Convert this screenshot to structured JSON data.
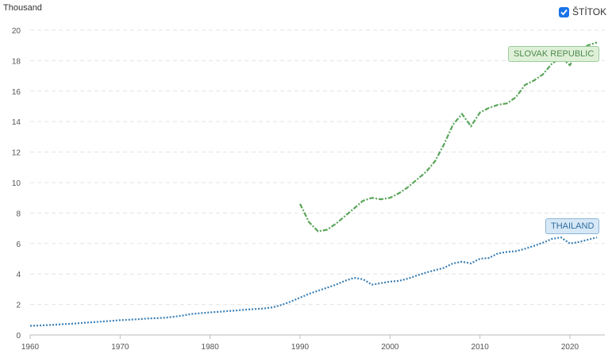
{
  "legend": {
    "toggle_label": "ŠTÍTOK",
    "checked": true
  },
  "chart_data": {
    "type": "line",
    "ylabel": "Thousand",
    "xlabel": "",
    "title": "",
    "xlim": [
      1960,
      2023
    ],
    "ylim": [
      0,
      20
    ],
    "x_ticks": [
      1960,
      1970,
      1980,
      1990,
      2000,
      2010,
      2020
    ],
    "y_ticks": [
      0,
      2,
      4,
      6,
      8,
      10,
      12,
      14,
      16,
      18,
      20
    ],
    "grid": "horizontal-dashed",
    "series": [
      {
        "name": "SLOVAK REPUBLIC",
        "color": "#5aa55a",
        "style": "dash-dot",
        "x": [
          1990,
          1991,
          1992,
          1993,
          1994,
          1995,
          1996,
          1997,
          1998,
          1999,
          2000,
          2001,
          2002,
          2003,
          2004,
          2005,
          2006,
          2007,
          2008,
          2009,
          2010,
          2011,
          2012,
          2013,
          2014,
          2015,
          2016,
          2017,
          2018,
          2019,
          2020,
          2021,
          2022,
          2023
        ],
        "values": [
          8.6,
          7.4,
          6.8,
          6.9,
          7.3,
          7.8,
          8.3,
          8.8,
          9.0,
          8.9,
          9.0,
          9.3,
          9.7,
          10.2,
          10.7,
          11.4,
          12.5,
          13.8,
          14.5,
          13.7,
          14.6,
          14.9,
          15.1,
          15.2,
          15.6,
          16.4,
          16.7,
          17.1,
          17.8,
          18.2,
          17.7,
          18.8,
          19.0,
          19.2
        ]
      },
      {
        "name": "THAILAND",
        "color": "#3a7fb5",
        "style": "dotted",
        "x": [
          1960,
          1961,
          1962,
          1963,
          1964,
          1965,
          1966,
          1967,
          1968,
          1969,
          1970,
          1971,
          1972,
          1973,
          1974,
          1975,
          1976,
          1977,
          1978,
          1979,
          1980,
          1981,
          1982,
          1983,
          1984,
          1985,
          1986,
          1987,
          1988,
          1989,
          1990,
          1991,
          1992,
          1993,
          1994,
          1995,
          1996,
          1997,
          1998,
          1999,
          2000,
          2001,
          2002,
          2003,
          2004,
          2005,
          2006,
          2007,
          2008,
          2009,
          2010,
          2011,
          2012,
          2013,
          2014,
          2015,
          2016,
          2017,
          2018,
          2019,
          2020,
          2021,
          2022,
          2023
        ],
        "values": [
          0.6,
          0.62,
          0.65,
          0.68,
          0.72,
          0.75,
          0.8,
          0.84,
          0.88,
          0.92,
          0.97,
          1.0,
          1.03,
          1.08,
          1.1,
          1.13,
          1.2,
          1.28,
          1.38,
          1.43,
          1.48,
          1.52,
          1.57,
          1.61,
          1.66,
          1.7,
          1.74,
          1.82,
          1.98,
          2.2,
          2.45,
          2.7,
          2.9,
          3.1,
          3.3,
          3.55,
          3.75,
          3.65,
          3.3,
          3.4,
          3.5,
          3.55,
          3.7,
          3.9,
          4.1,
          4.25,
          4.4,
          4.7,
          4.8,
          4.7,
          5.0,
          5.05,
          5.35,
          5.45,
          5.5,
          5.65,
          5.85,
          6.05,
          6.3,
          6.4,
          6.0,
          6.1,
          6.25,
          6.4
        ]
      }
    ]
  }
}
